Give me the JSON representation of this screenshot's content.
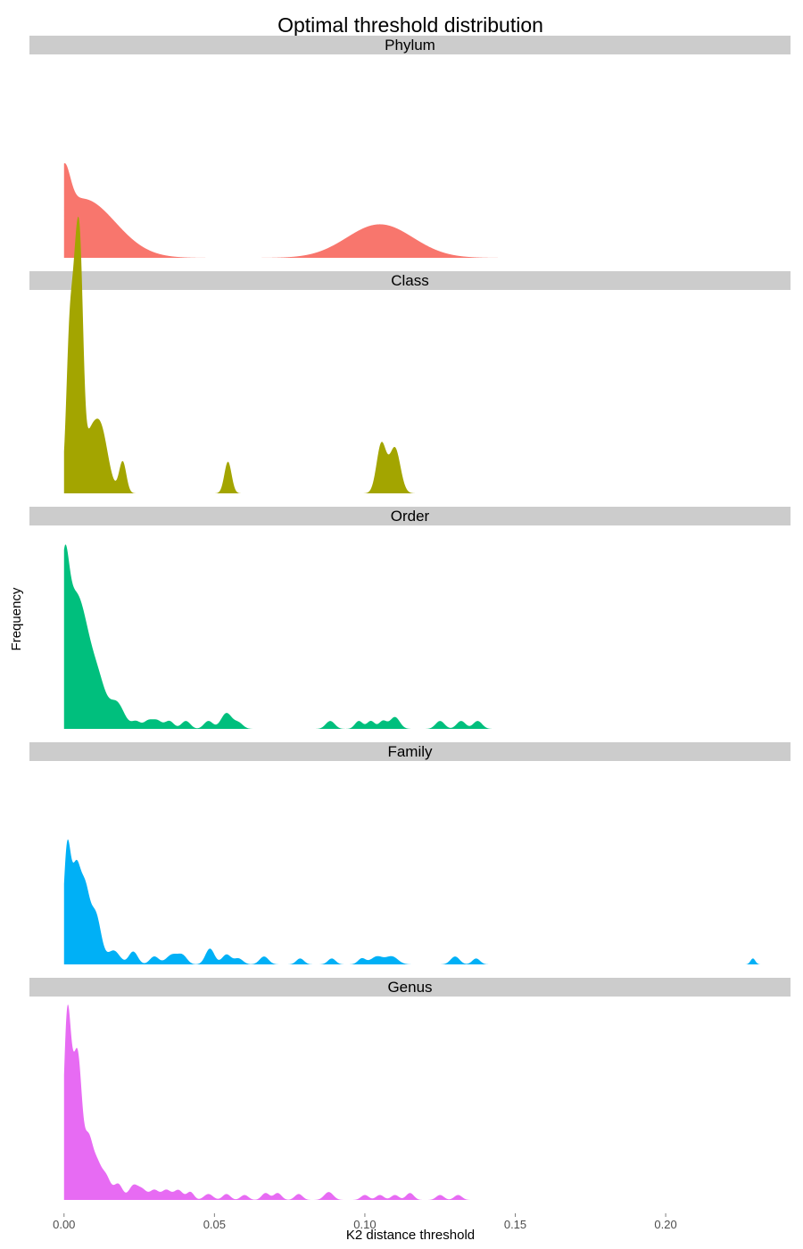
{
  "chart_data": {
    "type": "area",
    "title": "Optimal threshold distribution",
    "xlabel": "K2  distance threshold",
    "ylabel": "Frequency",
    "xlim": [
      -0.0115,
      0.2415
    ],
    "x_ticks": [
      0.0,
      0.05,
      0.1,
      0.15,
      0.2
    ],
    "x_tick_labels": [
      "0.00",
      "0.05",
      "0.10",
      "0.15",
      "0.20"
    ],
    "grid": false,
    "legend": "none",
    "strip_color": "#cccccc",
    "facets": [
      {
        "label": "Phylum",
        "color": "#f8766d",
        "peaks": [
          {
            "x": 0.0,
            "h": 0.22,
            "w": 0.002
          },
          {
            "x": 0.006,
            "h": 0.3,
            "w": 0.011
          },
          {
            "x": 0.105,
            "h": 0.17,
            "w": 0.011
          }
        ]
      },
      {
        "label": "Class",
        "color": "#a3a500",
        "peaks": [
          {
            "x": 0.002,
            "h": 0.85,
            "w": 0.0012
          },
          {
            "x": 0.004,
            "h": 0.8,
            "w": 0.001
          },
          {
            "x": 0.0055,
            "h": 0.9,
            "w": 0.001
          },
          {
            "x": 0.008,
            "h": 0.2,
            "w": 0.002
          },
          {
            "x": 0.012,
            "h": 0.34,
            "w": 0.0025
          },
          {
            "x": 0.0195,
            "h": 0.16,
            "w": 0.0012
          },
          {
            "x": 0.0545,
            "h": 0.16,
            "w": 0.0012
          },
          {
            "x": 0.1055,
            "h": 0.25,
            "w": 0.0016
          },
          {
            "x": 0.11,
            "h": 0.23,
            "w": 0.0018
          }
        ]
      },
      {
        "label": "Order",
        "color": "#00bf7d",
        "peaks": [
          {
            "x": 0.0,
            "h": 0.5,
            "w": 0.0015
          },
          {
            "x": 0.003,
            "h": 0.56,
            "w": 0.0035
          },
          {
            "x": 0.008,
            "h": 0.28,
            "w": 0.0035
          },
          {
            "x": 0.012,
            "h": 0.1,
            "w": 0.0022
          },
          {
            "x": 0.0175,
            "h": 0.13,
            "w": 0.0025
          },
          {
            "x": 0.024,
            "h": 0.036,
            "w": 0.0015
          },
          {
            "x": 0.028,
            "h": 0.04,
            "w": 0.0015
          },
          {
            "x": 0.031,
            "h": 0.04,
            "w": 0.0015
          },
          {
            "x": 0.035,
            "h": 0.04,
            "w": 0.0015
          },
          {
            "x": 0.0405,
            "h": 0.04,
            "w": 0.0015
          },
          {
            "x": 0.048,
            "h": 0.04,
            "w": 0.0015
          },
          {
            "x": 0.054,
            "h": 0.08,
            "w": 0.0018
          },
          {
            "x": 0.058,
            "h": 0.03,
            "w": 0.0015
          },
          {
            "x": 0.0885,
            "h": 0.04,
            "w": 0.0015
          },
          {
            "x": 0.098,
            "h": 0.04,
            "w": 0.0013
          },
          {
            "x": 0.102,
            "h": 0.04,
            "w": 0.0013
          },
          {
            "x": 0.106,
            "h": 0.04,
            "w": 0.0013
          },
          {
            "x": 0.11,
            "h": 0.06,
            "w": 0.0016
          },
          {
            "x": 0.125,
            "h": 0.04,
            "w": 0.0015
          },
          {
            "x": 0.132,
            "h": 0.04,
            "w": 0.0015
          },
          {
            "x": 0.1375,
            "h": 0.04,
            "w": 0.0015
          }
        ]
      },
      {
        "label": "Family",
        "color": "#00b0f6",
        "peaks": [
          {
            "x": 0.001,
            "h": 0.56,
            "w": 0.0012
          },
          {
            "x": 0.004,
            "h": 0.46,
            "w": 0.0015
          },
          {
            "x": 0.007,
            "h": 0.33,
            "w": 0.0015
          },
          {
            "x": 0.0105,
            "h": 0.25,
            "w": 0.0018
          },
          {
            "x": 0.0165,
            "h": 0.07,
            "w": 0.002
          },
          {
            "x": 0.023,
            "h": 0.065,
            "w": 0.0015
          },
          {
            "x": 0.03,
            "h": 0.04,
            "w": 0.0015
          },
          {
            "x": 0.036,
            "h": 0.05,
            "w": 0.002
          },
          {
            "x": 0.0395,
            "h": 0.04,
            "w": 0.0015
          },
          {
            "x": 0.0485,
            "h": 0.08,
            "w": 0.0015
          },
          {
            "x": 0.054,
            "h": 0.05,
            "w": 0.0015
          },
          {
            "x": 0.058,
            "h": 0.03,
            "w": 0.0015
          },
          {
            "x": 0.0665,
            "h": 0.04,
            "w": 0.0015
          },
          {
            "x": 0.0785,
            "h": 0.03,
            "w": 0.0013
          },
          {
            "x": 0.089,
            "h": 0.03,
            "w": 0.0013
          },
          {
            "x": 0.099,
            "h": 0.03,
            "w": 0.0013
          },
          {
            "x": 0.104,
            "h": 0.04,
            "w": 0.002
          },
          {
            "x": 0.109,
            "h": 0.04,
            "w": 0.002
          },
          {
            "x": 0.13,
            "h": 0.04,
            "w": 0.0015
          },
          {
            "x": 0.137,
            "h": 0.03,
            "w": 0.0013
          },
          {
            "x": 0.229,
            "h": 0.03,
            "w": 0.0008
          }
        ]
      },
      {
        "label": "Genus",
        "color": "#e76bf3",
        "peaks": [
          {
            "x": 0.001,
            "h": 0.85,
            "w": 0.0012
          },
          {
            "x": 0.0035,
            "h": 0.48,
            "w": 0.0015
          },
          {
            "x": 0.005,
            "h": 0.38,
            "w": 0.0012
          },
          {
            "x": 0.008,
            "h": 0.3,
            "w": 0.0015
          },
          {
            "x": 0.011,
            "h": 0.16,
            "w": 0.0015
          },
          {
            "x": 0.014,
            "h": 0.11,
            "w": 0.0015
          },
          {
            "x": 0.018,
            "h": 0.08,
            "w": 0.0015
          },
          {
            "x": 0.023,
            "h": 0.07,
            "w": 0.0015
          },
          {
            "x": 0.026,
            "h": 0.05,
            "w": 0.0015
          },
          {
            "x": 0.03,
            "h": 0.05,
            "w": 0.0015
          },
          {
            "x": 0.034,
            "h": 0.05,
            "w": 0.0015
          },
          {
            "x": 0.038,
            "h": 0.05,
            "w": 0.0015
          },
          {
            "x": 0.042,
            "h": 0.04,
            "w": 0.0012
          },
          {
            "x": 0.048,
            "h": 0.03,
            "w": 0.0015
          },
          {
            "x": 0.054,
            "h": 0.03,
            "w": 0.0013
          },
          {
            "x": 0.06,
            "h": 0.025,
            "w": 0.0013
          },
          {
            "x": 0.067,
            "h": 0.035,
            "w": 0.0013
          },
          {
            "x": 0.071,
            "h": 0.035,
            "w": 0.0013
          },
          {
            "x": 0.078,
            "h": 0.03,
            "w": 0.0013
          },
          {
            "x": 0.088,
            "h": 0.04,
            "w": 0.0015
          },
          {
            "x": 0.1,
            "h": 0.025,
            "w": 0.0013
          },
          {
            "x": 0.105,
            "h": 0.025,
            "w": 0.0013
          },
          {
            "x": 0.11,
            "h": 0.025,
            "w": 0.0013
          },
          {
            "x": 0.115,
            "h": 0.035,
            "w": 0.0013
          },
          {
            "x": 0.125,
            "h": 0.025,
            "w": 0.0013
          },
          {
            "x": 0.131,
            "h": 0.025,
            "w": 0.0013
          }
        ]
      }
    ]
  }
}
